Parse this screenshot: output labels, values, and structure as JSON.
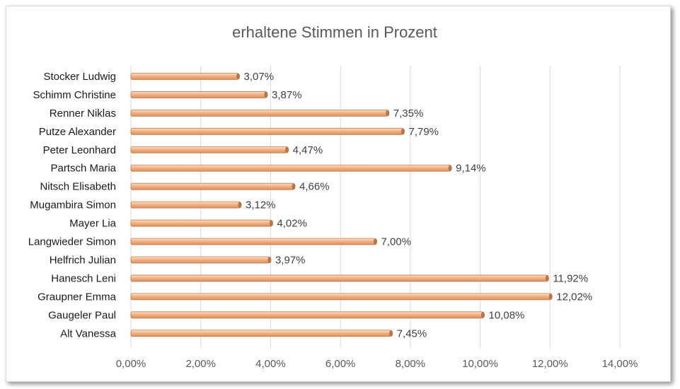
{
  "chart_data": {
    "type": "bar",
    "orientation": "horizontal",
    "title": "erhaltene Stimmen in Prozent",
    "categories": [
      "Stocker Ludwig",
      "Schimm Christine",
      "Renner Niklas",
      "Putze Alexander",
      "Peter Leonhard",
      "Partsch Maria",
      "Nitsch Elisabeth",
      "Mugambira Simon",
      "Mayer Lia",
      "Langwieder Simon",
      "Helfrich Julian",
      "Hanesch Leni",
      "Graupner Emma",
      "Gaugeler Paul",
      "Alt Vanessa"
    ],
    "values": [
      3.07,
      3.87,
      7.35,
      7.79,
      4.47,
      9.14,
      4.66,
      3.12,
      4.02,
      7.0,
      3.97,
      11.92,
      12.02,
      10.08,
      7.45
    ],
    "data_labels": [
      "3,07%",
      "3,87%",
      "7,35%",
      "7,79%",
      "4,47%",
      "9,14%",
      "4,66%",
      "3,12%",
      "4,02%",
      "7,00%",
      "3,97%",
      "11,92%",
      "12,02%",
      "10,08%",
      "7,45%"
    ],
    "x_ticks": [
      0,
      2,
      4,
      6,
      8,
      10,
      12,
      14
    ],
    "x_tick_labels": [
      "0,00%",
      "2,00%",
      "4,00%",
      "6,00%",
      "8,00%",
      "10,00%",
      "12,00%",
      "14,00%"
    ],
    "xlim": [
      0,
      14
    ],
    "xlabel": "",
    "ylabel": "",
    "grid": "vertical",
    "legend": "none",
    "bar_color": "#f4b183",
    "bar_edge_color": "#c07a48"
  }
}
